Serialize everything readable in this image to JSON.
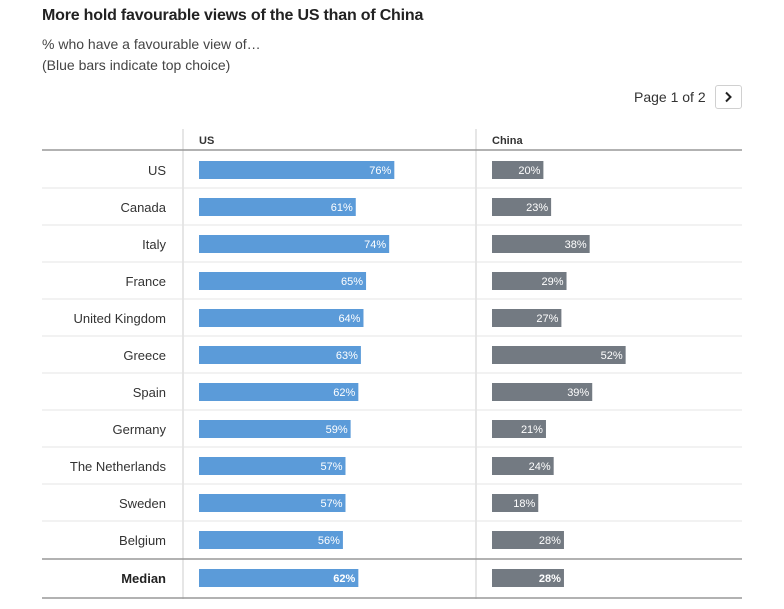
{
  "header": {
    "title": "More hold favourable views of the US than of China",
    "subtitle_line1": "% who have a favourable view of…",
    "subtitle_line2": "(Blue bars indicate top choice)"
  },
  "pager": {
    "text": "Page 1 of 2",
    "next_icon": "chevron-right-icon"
  },
  "colors": {
    "top_choice": "#5b9bd9",
    "other": "#737a82",
    "grid": "#e5e5e5",
    "axis": "#999999"
  },
  "chart_data": {
    "type": "bar",
    "columns": [
      "US",
      "China"
    ],
    "categories": [
      "US",
      "Canada",
      "Italy",
      "France",
      "United Kingdom",
      "Greece",
      "Spain",
      "Germany",
      "The Netherlands",
      "Sweden",
      "Belgium"
    ],
    "series": [
      {
        "name": "US",
        "values": [
          76,
          61,
          74,
          65,
          64,
          63,
          62,
          59,
          57,
          57,
          56
        ]
      },
      {
        "name": "China",
        "values": [
          20,
          23,
          38,
          29,
          27,
          52,
          39,
          21,
          24,
          18,
          28
        ]
      }
    ],
    "median": {
      "label": "Median",
      "values": [
        62,
        28
      ]
    },
    "value_suffix": "%",
    "xlim": [
      0,
      100
    ]
  }
}
